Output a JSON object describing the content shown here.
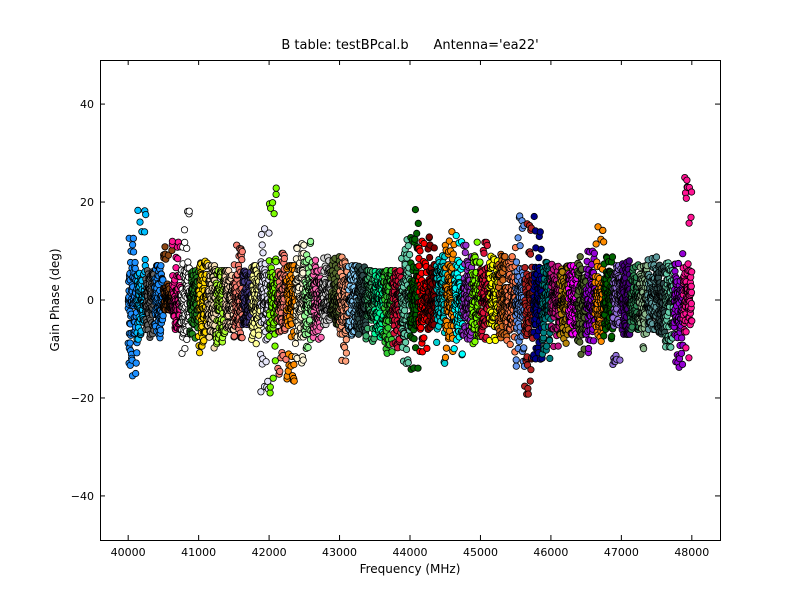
{
  "chart_data": {
    "type": "scatter",
    "title": "B table: testBPcal.b      Antenna='ea22'",
    "xlabel": "Frequency (MHz)",
    "ylabel": "Gain Phase (deg)",
    "xlim": [
      39600,
      48400
    ],
    "ylim": [
      -49,
      49
    ],
    "xticks": [
      40000,
      41000,
      42000,
      43000,
      44000,
      45000,
      46000,
      47000,
      48000
    ],
    "yticks": [
      -40,
      -20,
      0,
      20,
      40
    ],
    "ytick_labels": [
      "−40",
      "−20",
      "0",
      "20",
      "40"
    ],
    "grid": false,
    "legend": "none",
    "marker": "circle, black edge",
    "series": [
      {
        "x": [
          40000,
          40125
        ],
        "ylim": [
          -16,
          16
        ],
        "color": "#1e90ff"
      },
      {
        "x": [
          40125,
          40250
        ],
        "ylim": [
          -8,
          20
        ],
        "color": "#00bfff"
      },
      {
        "x": [
          40250,
          40375
        ],
        "ylim": [
          -8,
          6
        ],
        "color": "#696969"
      },
      {
        "x": [
          40375,
          40500
        ],
        "ylim": [
          -8,
          7
        ],
        "color": "#1e90ff"
      },
      {
        "x": [
          40500,
          40625
        ],
        "ylim": [
          -2,
          11
        ],
        "color": "#8b4513"
      },
      {
        "x": [
          40625,
          40750
        ],
        "ylim": [
          -6,
          12
        ],
        "color": "#ff1493"
      },
      {
        "x": [
          40750,
          40875
        ],
        "ylim": [
          -15,
          19
        ],
        "color": "#ffffff"
      },
      {
        "x": [
          40875,
          41000
        ],
        "ylim": [
          -8,
          6
        ],
        "color": "#228b22"
      },
      {
        "x": [
          41000,
          41125
        ],
        "ylim": [
          -11,
          8
        ],
        "color": "#ffd700"
      },
      {
        "x": [
          41125,
          41250
        ],
        "ylim": [
          -10,
          7
        ],
        "color": "#f5deb3"
      },
      {
        "x": [
          41250,
          41375
        ],
        "ylim": [
          -9,
          6
        ],
        "color": "#adff2f"
      },
      {
        "x": [
          41375,
          41500
        ],
        "ylim": [
          -6,
          6
        ],
        "color": "#ffdab9"
      },
      {
        "x": [
          41500,
          41625
        ],
        "ylim": [
          -8,
          12
        ],
        "color": "#fa8072"
      },
      {
        "x": [
          41625,
          41750
        ],
        "ylim": [
          -5,
          6
        ],
        "color": "#483d8b"
      },
      {
        "x": [
          41750,
          41875
        ],
        "ylim": [
          -9,
          7
        ],
        "color": "#ffff99"
      },
      {
        "x": [
          41875,
          42000
        ],
        "ylim": [
          -19,
          18
        ],
        "color": "#e6e6fa"
      },
      {
        "x": [
          42000,
          42125
        ],
        "ylim": [
          -20,
          24
        ],
        "color": "#7cfc00"
      },
      {
        "x": [
          42125,
          42250
        ],
        "ylim": [
          -17,
          10
        ],
        "color": "#fa8072"
      },
      {
        "x": [
          42250,
          42375
        ],
        "ylim": [
          -17,
          7
        ],
        "color": "#ff8c00"
      },
      {
        "x": [
          42375,
          42500
        ],
        "ylim": [
          -13,
          12
        ],
        "color": "#fff8dc"
      },
      {
        "x": [
          42500,
          42625
        ],
        "ylim": [
          -10,
          12
        ],
        "color": "#98fb98"
      },
      {
        "x": [
          42625,
          42750
        ],
        "ylim": [
          -8,
          10
        ],
        "color": "#ff69b4"
      },
      {
        "x": [
          42750,
          42875
        ],
        "ylim": [
          -5,
          9
        ],
        "color": "#d3d3d3"
      },
      {
        "x": [
          42875,
          43000
        ],
        "ylim": [
          -5,
          9
        ],
        "color": "#556b2f"
      },
      {
        "x": [
          43000,
          43125
        ],
        "ylim": [
          -16,
          11
        ],
        "color": "#ffa07a"
      },
      {
        "x": [
          43125,
          43250
        ],
        "ylim": [
          -8,
          7
        ],
        "color": "#87cefa"
      },
      {
        "x": [
          43250,
          43375
        ],
        "ylim": [
          -7,
          7
        ],
        "color": "#2f4f4f"
      },
      {
        "x": [
          43375,
          43500
        ],
        "ylim": [
          -9,
          6
        ],
        "color": "#3cb371"
      },
      {
        "x": [
          43500,
          43625
        ],
        "ylim": [
          -8,
          6
        ],
        "color": "#00fa9a"
      },
      {
        "x": [
          43625,
          43750
        ],
        "ylim": [
          -11,
          6
        ],
        "color": "#32cd32"
      },
      {
        "x": [
          43750,
          43875
        ],
        "ylim": [
          -10,
          6
        ],
        "color": "#dc143c"
      },
      {
        "x": [
          43875,
          44000
        ],
        "ylim": [
          -13,
          13
        ],
        "color": "#66cdaa"
      },
      {
        "x": [
          44000,
          44125
        ],
        "ylim": [
          -15,
          19
        ],
        "color": "#006400"
      },
      {
        "x": [
          44125,
          44250
        ],
        "ylim": [
          -11,
          14
        ],
        "color": "#ff0000"
      },
      {
        "x": [
          44250,
          44375
        ],
        "ylim": [
          -6,
          13
        ],
        "color": "#800000"
      },
      {
        "x": [
          44375,
          44500
        ],
        "ylim": [
          -13,
          10
        ],
        "color": "#00ced1"
      },
      {
        "x": [
          44500,
          44625
        ],
        "ylim": [
          -12,
          14
        ],
        "color": "#ff8c00"
      },
      {
        "x": [
          44625,
          44750
        ],
        "ylim": [
          -12,
          15
        ],
        "color": "#00ffff"
      },
      {
        "x": [
          44750,
          44875
        ],
        "ylim": [
          -8,
          12
        ],
        "color": "#9932cc"
      },
      {
        "x": [
          44875,
          45000
        ],
        "ylim": [
          -9,
          12
        ],
        "color": "#7fff00"
      },
      {
        "x": [
          45000,
          45125
        ],
        "ylim": [
          -8,
          12
        ],
        "color": "#dc143c"
      },
      {
        "x": [
          45125,
          45250
        ],
        "ylim": [
          -9,
          9
        ],
        "color": "#ffff00"
      },
      {
        "x": [
          45250,
          45375
        ],
        "ylim": [
          -8,
          10
        ],
        "color": "#d2691e"
      },
      {
        "x": [
          45375,
          45500
        ],
        "ylim": [
          -11,
          11
        ],
        "color": "#ff7f50"
      },
      {
        "x": [
          45500,
          45625
        ],
        "ylim": [
          -14,
          18
        ],
        "color": "#6495ed"
      },
      {
        "x": [
          45625,
          45750
        ],
        "ylim": [
          -20,
          18
        ],
        "color": "#b22222"
      },
      {
        "x": [
          45750,
          45875
        ],
        "ylim": [
          -14,
          18
        ],
        "color": "#00008b"
      },
      {
        "x": [
          45875,
          46000
        ],
        "ylim": [
          -12,
          10
        ],
        "color": "#008080"
      },
      {
        "x": [
          46000,
          46125
        ],
        "ylim": [
          -10,
          8
        ],
        "color": "#c71585"
      },
      {
        "x": [
          46125,
          46250
        ],
        "ylim": [
          -9,
          7
        ],
        "color": "#b8860b"
      },
      {
        "x": [
          46250,
          46375
        ],
        "ylim": [
          -8,
          7
        ],
        "color": "#ff00ff"
      },
      {
        "x": [
          46375,
          46500
        ],
        "ylim": [
          -12,
          9
        ],
        "color": "#556b2f"
      },
      {
        "x": [
          46500,
          46625
        ],
        "ylim": [
          -11,
          11
        ],
        "color": "#9400d3"
      },
      {
        "x": [
          46625,
          46750
        ],
        "ylim": [
          -9,
          15
        ],
        "color": "#ff8c00"
      },
      {
        "x": [
          46750,
          46875
        ],
        "ylim": [
          -8,
          9
        ],
        "color": "#006400"
      },
      {
        "x": [
          46875,
          47000
        ],
        "ylim": [
          -14,
          7
        ],
        "color": "#9370db"
      },
      {
        "x": [
          47000,
          47125
        ],
        "ylim": [
          -7,
          8
        ],
        "color": "#4b0082"
      },
      {
        "x": [
          47125,
          47250
        ],
        "ylim": [
          -6,
          8
        ],
        "color": "#2e8b57"
      },
      {
        "x": [
          47250,
          47375
        ],
        "ylim": [
          -10,
          7
        ],
        "color": "#8fbc8f"
      },
      {
        "x": [
          47375,
          47500
        ],
        "ylim": [
          -6,
          9
        ],
        "color": "#5f9ea0"
      },
      {
        "x": [
          47500,
          47625
        ],
        "ylim": [
          -7,
          8
        ],
        "color": "#2f4f4f"
      },
      {
        "x": [
          47625,
          47750
        ],
        "ylim": [
          -10,
          9
        ],
        "color": "#66cdaa"
      },
      {
        "x": [
          47750,
          47875
        ],
        "ylim": [
          -14,
          10
        ],
        "color": "#9400d3"
      },
      {
        "x": [
          47875,
          48000
        ],
        "ylim": [
          -13,
          25
        ],
        "color": "#ff1493"
      }
    ]
  }
}
